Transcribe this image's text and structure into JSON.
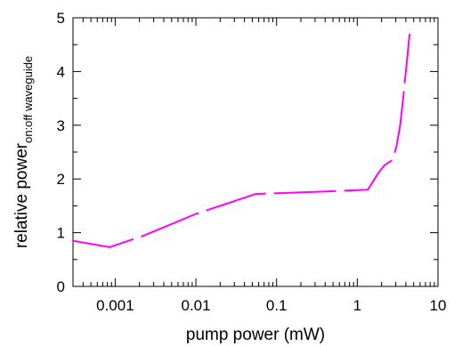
{
  "chart_data": {
    "type": "line",
    "title": "",
    "xlabel": "pump power (mW)",
    "ylabel": "relative power",
    "ylabel_subscript": "on:off waveguide",
    "xscale": "log",
    "xlim": [
      0.0003,
      10
    ],
    "ylim": [
      0,
      5
    ],
    "grid": false,
    "legend": "none",
    "line_color": "#ff00ff",
    "line_style": "long-dash",
    "x_ticks": [
      0.001,
      0.01,
      0.1,
      1,
      10
    ],
    "x_tick_labels": [
      "0.001",
      "0.01",
      "0.1",
      "1",
      "10"
    ],
    "y_ticks": [
      0,
      1,
      2,
      3,
      4,
      5
    ],
    "y_tick_labels": [
      "0",
      "1",
      "2",
      "3",
      "4",
      "5"
    ],
    "series": [
      {
        "x": [
          0.0003,
          0.00085,
          0.0023,
          0.01,
          0.055,
          0.45,
          1.35,
          1.8,
          2.15,
          2.7,
          3.05,
          3.4,
          3.7,
          4.45
        ],
        "y": [
          0.85,
          0.73,
          0.95,
          1.35,
          1.72,
          1.77,
          1.8,
          2.1,
          2.25,
          2.35,
          2.6,
          3.0,
          3.5,
          4.7
        ]
      }
    ]
  }
}
